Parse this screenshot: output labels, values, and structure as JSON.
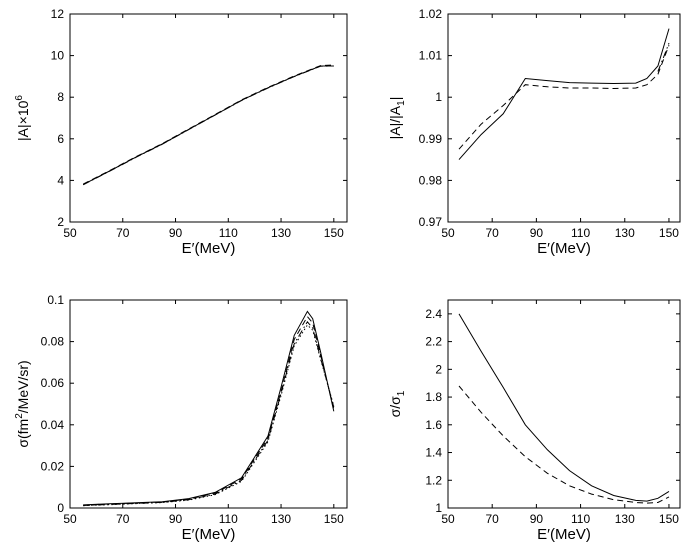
{
  "chart_data": [
    {
      "type": "line",
      "title": "",
      "xlabel": "E′(MeV)",
      "ylabel_text": "|A|×10",
      "ylabel_sup": "6",
      "xlim": [
        50,
        155
      ],
      "ylim": [
        2,
        12
      ],
      "xticks": [
        50,
        70,
        90,
        110,
        130,
        150
      ],
      "yticks": [
        2,
        4,
        6,
        8,
        10,
        12
      ],
      "xtick_labels": [
        "50",
        "70",
        "90",
        "110",
        "130",
        "150"
      ],
      "ytick_labels": [
        "2",
        "4",
        "6",
        "8",
        "10",
        "12"
      ],
      "series": [
        {
          "name": "solid",
          "style": "solid",
          "x": [
            55,
            65,
            75,
            85,
            95,
            105,
            115,
            125,
            135,
            140,
            145,
            150
          ],
          "y": [
            3.8,
            4.45,
            5.12,
            5.75,
            6.45,
            7.15,
            7.85,
            8.45,
            9.0,
            9.25,
            9.5,
            9.5
          ]
        },
        {
          "name": "dashed",
          "style": "dashed",
          "x": [
            55,
            65,
            75,
            85,
            95,
            105,
            115,
            125,
            135,
            140,
            145,
            150
          ],
          "y": [
            3.82,
            4.47,
            5.14,
            5.77,
            6.47,
            7.17,
            7.87,
            8.47,
            9.02,
            9.27,
            9.52,
            9.55
          ]
        },
        {
          "name": "dashdot",
          "style": "dashdot",
          "x": [
            55,
            65,
            75,
            85,
            95,
            105,
            115,
            125,
            135,
            140,
            145,
            150
          ],
          "y": [
            3.79,
            4.44,
            5.11,
            5.74,
            6.44,
            7.14,
            7.84,
            8.44,
            8.99,
            9.24,
            9.49,
            9.5
          ]
        }
      ]
    },
    {
      "type": "line",
      "title": "",
      "xlabel": "E′(MeV)",
      "ylabel_text": "|A|/|A",
      "ylabel_sub": "1",
      "ylabel_tail": "|",
      "xlim": [
        50,
        155
      ],
      "ylim": [
        0.97,
        1.02
      ],
      "xticks": [
        50,
        70,
        90,
        110,
        130,
        150
      ],
      "yticks": [
        0.97,
        0.98,
        0.99,
        1.0,
        1.01,
        1.02
      ],
      "xtick_labels": [
        "50",
        "70",
        "90",
        "110",
        "130",
        "150"
      ],
      "ytick_labels": [
        "0.97",
        "0.98",
        "0.99",
        "1",
        "1.01",
        "1.02"
      ],
      "series": [
        {
          "name": "solid",
          "style": "solid",
          "x": [
            55,
            65,
            75,
            85,
            95,
            105,
            115,
            125,
            135,
            140,
            145,
            150
          ],
          "y": [
            0.985,
            0.991,
            0.996,
            1.0045,
            1.004,
            1.0035,
            1.0034,
            1.0033,
            1.0034,
            1.0045,
            1.0075,
            1.0165
          ]
        },
        {
          "name": "dashed",
          "style": "dashed",
          "x": [
            55,
            65,
            75,
            85,
            95,
            105,
            115,
            125,
            135,
            140,
            145,
            150
          ],
          "y": [
            0.9875,
            0.9935,
            0.998,
            1.003,
            1.0025,
            1.0022,
            1.0022,
            1.0021,
            1.0022,
            1.003,
            1.0055,
            1.0125
          ]
        },
        {
          "name": "dashdot",
          "style": "dashdot",
          "x": [
            145,
            147.5,
            150
          ],
          "y": [
            1.0062,
            1.0095,
            1.013
          ]
        }
      ]
    },
    {
      "type": "line",
      "title": "",
      "xlabel": "E′(MeV)",
      "ylabel_text": "σ(fm",
      "ylabel_sup": "2",
      "ylabel_tail": "/MeV/sr)",
      "xlim": [
        50,
        155
      ],
      "ylim": [
        0,
        0.1
      ],
      "xticks": [
        50,
        70,
        90,
        110,
        130,
        150
      ],
      "yticks": [
        0,
        0.02,
        0.04,
        0.06,
        0.08,
        0.1
      ],
      "xtick_labels": [
        "50",
        "70",
        "90",
        "110",
        "130",
        "150"
      ],
      "ytick_labels": [
        "0",
        "0.02",
        "0.04",
        "0.06",
        "0.08",
        "0.1"
      ],
      "series": [
        {
          "name": "solid",
          "style": "solid",
          "x": [
            55,
            65,
            75,
            85,
            95,
            105,
            115,
            125,
            130,
            135,
            140,
            142,
            145,
            150
          ],
          "y": [
            0.0015,
            0.002,
            0.0025,
            0.003,
            0.0045,
            0.0075,
            0.0145,
            0.0345,
            0.058,
            0.083,
            0.0945,
            0.091,
            0.075,
            0.0465
          ]
        },
        {
          "name": "dashed",
          "style": "dashed",
          "x": [
            55,
            65,
            75,
            85,
            95,
            105,
            115,
            125,
            130,
            135,
            140,
            142,
            145,
            150
          ],
          "y": [
            0.0014,
            0.0019,
            0.0024,
            0.0029,
            0.0043,
            0.0071,
            0.014,
            0.0335,
            0.056,
            0.081,
            0.092,
            0.089,
            0.0735,
            0.0475
          ]
        },
        {
          "name": "dashdot",
          "style": "dashdot",
          "x": [
            55,
            65,
            75,
            85,
            95,
            105,
            115,
            125,
            130,
            135,
            140,
            142,
            145,
            150
          ],
          "y": [
            0.0012,
            0.0017,
            0.0022,
            0.0027,
            0.004,
            0.0067,
            0.0133,
            0.0325,
            0.055,
            0.079,
            0.0895,
            0.0865,
            0.072,
            0.0485
          ]
        },
        {
          "name": "dotted",
          "style": "dotted",
          "x": [
            55,
            65,
            75,
            85,
            95,
            105,
            115,
            125,
            130,
            135,
            140,
            142,
            145,
            150
          ],
          "y": [
            0.0011,
            0.0016,
            0.0021,
            0.0026,
            0.0038,
            0.0064,
            0.0128,
            0.0318,
            0.054,
            0.078,
            0.088,
            0.0855,
            0.0715,
            0.049
          ]
        }
      ]
    },
    {
      "type": "line",
      "title": "",
      "xlabel": "E′(MeV)",
      "ylabel_text": "σ/σ",
      "ylabel_sub": "1",
      "xlim": [
        50,
        155
      ],
      "ylim": [
        1.0,
        2.5
      ],
      "xticks": [
        50,
        70,
        90,
        110,
        130,
        150
      ],
      "yticks": [
        1.0,
        1.2,
        1.4,
        1.6,
        1.8,
        2.0,
        2.2,
        2.4
      ],
      "xtick_labels": [
        "50",
        "70",
        "90",
        "110",
        "130",
        "150"
      ],
      "ytick_labels": [
        "1",
        "1.2",
        "1.4",
        "1.6",
        "1.8",
        "2",
        "2.2",
        "2.4"
      ],
      "series": [
        {
          "name": "solid",
          "style": "solid",
          "x": [
            55,
            65,
            75,
            85,
            95,
            105,
            115,
            125,
            135,
            140,
            145,
            150
          ],
          "y": [
            2.4,
            2.13,
            1.87,
            1.6,
            1.42,
            1.27,
            1.16,
            1.09,
            1.055,
            1.05,
            1.07,
            1.12
          ]
        },
        {
          "name": "dashed",
          "style": "dashed",
          "x": [
            55,
            65,
            75,
            85,
            95,
            105,
            115,
            125,
            135,
            140,
            145,
            150
          ],
          "y": [
            1.88,
            1.69,
            1.52,
            1.37,
            1.25,
            1.16,
            1.1,
            1.06,
            1.04,
            1.035,
            1.04,
            1.08
          ]
        }
      ]
    }
  ]
}
